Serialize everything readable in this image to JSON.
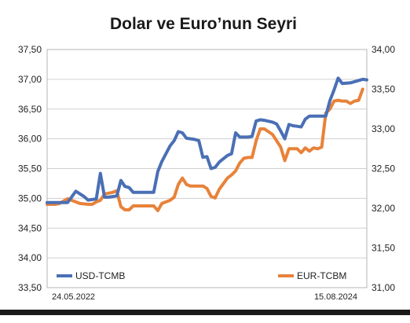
{
  "chart_data": {
    "type": "line",
    "title": "Dolar ve Euro’nun Seyri",
    "x_start_label": "24.05.2022",
    "x_end_label": "15.08.2024",
    "grid": true,
    "legend_position": "bottom",
    "left_axis": {
      "ylim": [
        33.5,
        37.5
      ],
      "ticks": [
        "37,50",
        "37,00",
        "36,50",
        "36,00",
        "35,50",
        "35,00",
        "34,50",
        "34,00",
        "33,50"
      ],
      "tick_values": [
        37.5,
        37.0,
        36.5,
        36.0,
        35.5,
        35.0,
        34.5,
        34.0,
        33.5
      ]
    },
    "right_axis": {
      "ylim": [
        31.0,
        34.0
      ],
      "ticks": [
        "34,00",
        "33,50",
        "33,00",
        "32,50",
        "32,00",
        "31,50",
        "31,00"
      ],
      "tick_values": [
        34.0,
        33.5,
        33.0,
        32.5,
        32.0,
        31.5,
        31.0
      ]
    },
    "series": [
      {
        "name": "USD-TCMB",
        "axis": "left",
        "color": "#4a6fb5",
        "points": [
          [
            0,
            34.93
          ],
          [
            3,
            34.93
          ],
          [
            5,
            34.93
          ],
          [
            7,
            35.12
          ],
          [
            9,
            35.03
          ],
          [
            10,
            34.97
          ],
          [
            12,
            34.99
          ],
          [
            13,
            35.42
          ],
          [
            14,
            35.02
          ],
          [
            15,
            35.02
          ],
          [
            17,
            35.04
          ],
          [
            18,
            35.3
          ],
          [
            19,
            35.2
          ],
          [
            20,
            35.18
          ],
          [
            21,
            35.1
          ],
          [
            23,
            35.1
          ],
          [
            24,
            35.1
          ],
          [
            26,
            35.1
          ],
          [
            27,
            35.45
          ],
          [
            28,
            35.62
          ],
          [
            29,
            35.75
          ],
          [
            30,
            35.88
          ],
          [
            31,
            35.97
          ],
          [
            32,
            36.12
          ],
          [
            33,
            36.1
          ],
          [
            34,
            36.01
          ],
          [
            36,
            35.99
          ],
          [
            37,
            35.97
          ],
          [
            38,
            35.69
          ],
          [
            39,
            35.7
          ],
          [
            40,
            35.5
          ],
          [
            41,
            35.52
          ],
          [
            42,
            35.61
          ],
          [
            44,
            35.72
          ],
          [
            45,
            35.75
          ],
          [
            46,
            36.1
          ],
          [
            47,
            36.03
          ],
          [
            49,
            36.03
          ],
          [
            50,
            36.04
          ],
          [
            51,
            36.3
          ],
          [
            52,
            36.32
          ],
          [
            53,
            36.31
          ],
          [
            55,
            36.28
          ],
          [
            56,
            36.25
          ],
          [
            57,
            36.13
          ],
          [
            58,
            36.0
          ],
          [
            59,
            36.24
          ],
          [
            60,
            36.22
          ],
          [
            61,
            36.21
          ],
          [
            62,
            36.2
          ],
          [
            63,
            36.33
          ],
          [
            64,
            36.38
          ],
          [
            65,
            36.38
          ],
          [
            66,
            36.38
          ],
          [
            67,
            36.38
          ],
          [
            68,
            36.38
          ],
          [
            69,
            36.64
          ],
          [
            70,
            36.82
          ],
          [
            71,
            37.02
          ],
          [
            72,
            36.93
          ],
          [
            74,
            36.94
          ],
          [
            75,
            36.96
          ],
          [
            76,
            36.98
          ],
          [
            77,
            37.0
          ],
          [
            78,
            36.99
          ]
        ]
      },
      {
        "name": "EUR-TCBM",
        "axis": "right",
        "color": "#e8823a",
        "points": [
          [
            0,
            32.05
          ],
          [
            2,
            32.05
          ],
          [
            3,
            32.06
          ],
          [
            5,
            32.12
          ],
          [
            6,
            32.1
          ],
          [
            8,
            32.06
          ],
          [
            10,
            32.05
          ],
          [
            11,
            32.05
          ],
          [
            12,
            32.08
          ],
          [
            13,
            32.1
          ],
          [
            14,
            32.18
          ],
          [
            16,
            32.2
          ],
          [
            17,
            32.22
          ],
          [
            18,
            32.02
          ],
          [
            19,
            31.98
          ],
          [
            20,
            31.98
          ],
          [
            21,
            32.03
          ],
          [
            23,
            32.03
          ],
          [
            25,
            32.03
          ],
          [
            26,
            32.03
          ],
          [
            27,
            31.97
          ],
          [
            28,
            32.06
          ],
          [
            30,
            32.1
          ],
          [
            31,
            32.14
          ],
          [
            32,
            32.3
          ],
          [
            33,
            32.38
          ],
          [
            34,
            32.3
          ],
          [
            35,
            32.28
          ],
          [
            36,
            32.28
          ],
          [
            38,
            32.28
          ],
          [
            39,
            32.25
          ],
          [
            40,
            32.15
          ],
          [
            41,
            32.13
          ],
          [
            42,
            32.24
          ],
          [
            44,
            32.38
          ],
          [
            45,
            32.42
          ],
          [
            46,
            32.47
          ],
          [
            47,
            32.57
          ],
          [
            48,
            32.63
          ],
          [
            49,
            32.64
          ],
          [
            50,
            32.64
          ],
          [
            51,
            32.85
          ],
          [
            52,
            33.0
          ],
          [
            53,
            33.0
          ],
          [
            55,
            32.93
          ],
          [
            56,
            32.85
          ],
          [
            57,
            32.77
          ],
          [
            58,
            32.6
          ],
          [
            59,
            32.75
          ],
          [
            60,
            32.75
          ],
          [
            61,
            32.75
          ],
          [
            62,
            32.7
          ],
          [
            63,
            32.76
          ],
          [
            64,
            32.72
          ],
          [
            65,
            32.76
          ],
          [
            66,
            32.75
          ],
          [
            67,
            32.77
          ],
          [
            68,
            33.2
          ],
          [
            69,
            33.25
          ],
          [
            70,
            33.35
          ],
          [
            71,
            33.36
          ],
          [
            72,
            33.35
          ],
          [
            73,
            33.35
          ],
          [
            74,
            33.32
          ],
          [
            75,
            33.35
          ],
          [
            76,
            33.36
          ],
          [
            77,
            33.5
          ]
        ]
      }
    ]
  }
}
